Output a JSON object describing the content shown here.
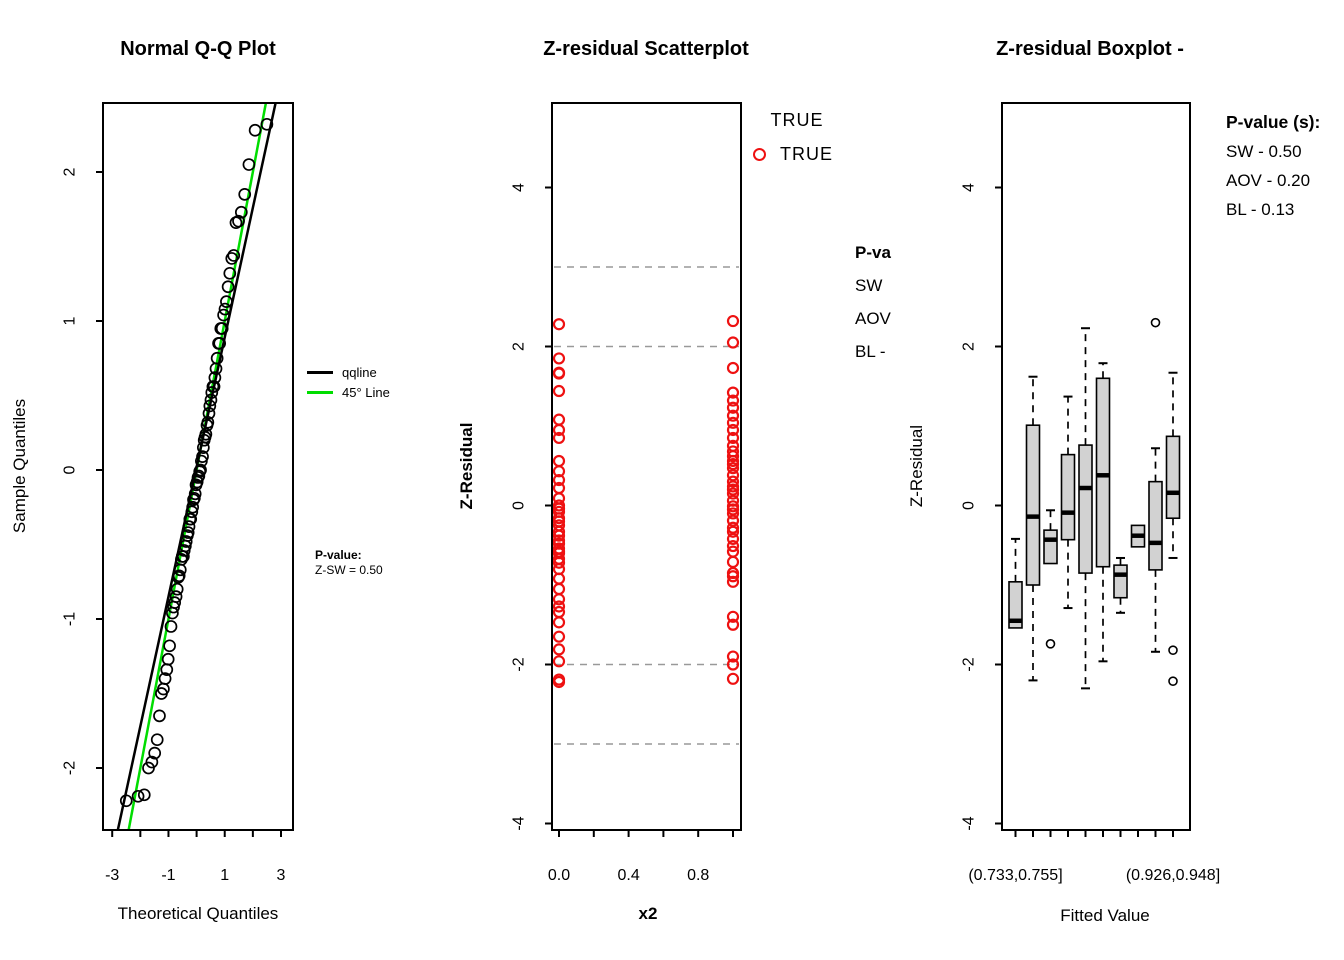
{
  "figure": {
    "background": "#FFFFFF"
  },
  "colors": {
    "black": "#000000",
    "point_red": "#EE1111",
    "line_green": "#00DD00",
    "box_fill": "#D2D2D2",
    "grid_grey": "#999999"
  },
  "chart_data": [
    {
      "id": "qq",
      "type": "scatter",
      "title": "Normal Q-Q Plot",
      "xlabel": "Theoretical Quantiles",
      "ylabel": "Sample Quantiles",
      "xlim": [
        -3.3,
        3.4
      ],
      "ylim": [
        -2.42,
        2.46
      ],
      "grid": false,
      "x_ticks": [
        {
          "v": -3,
          "t": "-3"
        },
        {
          "v": -2,
          "t": ""
        },
        {
          "v": -1,
          "t": "-1"
        },
        {
          "v": 0,
          "t": ""
        },
        {
          "v": 1,
          "t": "1"
        },
        {
          "v": 2,
          "t": ""
        },
        {
          "v": 3,
          "t": "3"
        }
      ],
      "y_ticks": [
        {
          "v": -2,
          "t": "-2"
        },
        {
          "v": -1,
          "t": "-1"
        },
        {
          "v": 0,
          "t": "0"
        },
        {
          "v": 1,
          "t": "1"
        },
        {
          "v": 2,
          "t": "2"
        }
      ],
      "points_x": [
        -2.5,
        -2.08,
        -1.86,
        -1.71,
        -1.59,
        -1.49,
        -1.4,
        -1.32,
        -1.25,
        -1.18,
        -1.12,
        -1.06,
        -1.01,
        -0.96,
        -0.91,
        -0.86,
        -0.82,
        -0.78,
        -0.73,
        -0.69,
        -0.65,
        -0.62,
        -0.58,
        -0.54,
        -0.51,
        -0.47,
        -0.44,
        -0.4,
        -0.37,
        -0.33,
        -0.3,
        -0.27,
        -0.24,
        -0.21,
        -0.17,
        -0.14,
        -0.11,
        -0.08,
        -0.05,
        -0.02,
        0.02,
        0.05,
        0.08,
        0.11,
        0.14,
        0.17,
        0.21,
        0.24,
        0.27,
        0.3,
        0.33,
        0.37,
        0.4,
        0.44,
        0.47,
        0.51,
        0.54,
        0.58,
        0.62,
        0.65,
        0.69,
        0.73,
        0.78,
        0.82,
        0.86,
        0.91,
        0.96,
        1.01,
        1.06,
        1.12,
        1.18,
        1.25,
        1.32,
        1.4,
        1.49,
        1.59,
        1.71,
        1.86,
        2.08,
        2.5
      ],
      "points_y": [
        -2.22,
        -2.19,
        -2.18,
        -2.0,
        -1.96,
        -1.9,
        -1.81,
        -1.65,
        -1.5,
        -1.47,
        -1.4,
        -1.34,
        -1.27,
        -1.18,
        -1.05,
        -0.96,
        -0.92,
        -0.89,
        -0.85,
        -0.8,
        -0.72,
        -0.71,
        -0.67,
        -0.6,
        -0.58,
        -0.58,
        -0.54,
        -0.51,
        -0.48,
        -0.44,
        -0.42,
        -0.38,
        -0.33,
        -0.33,
        -0.28,
        -0.25,
        -0.2,
        -0.19,
        -0.16,
        -0.1,
        -0.08,
        -0.05,
        -0.04,
        -0.01,
        0.0,
        0.06,
        0.09,
        0.15,
        0.2,
        0.22,
        0.24,
        0.3,
        0.32,
        0.38,
        0.43,
        0.47,
        0.52,
        0.56,
        0.56,
        0.62,
        0.68,
        0.75,
        0.85,
        0.85,
        0.95,
        0.95,
        1.04,
        1.08,
        1.13,
        1.23,
        1.32,
        1.42,
        1.44,
        1.66,
        1.67,
        1.73,
        1.85,
        2.05,
        2.28,
        2.32
      ],
      "point_color": "#000000",
      "lines": [
        {
          "name": "45-degree-line",
          "slope": 1.0,
          "intercept": 0.0,
          "color": "#00DD00"
        },
        {
          "name": "qqline",
          "slope": 0.87,
          "intercept": 0.02,
          "color": "#000000"
        }
      ],
      "legend": {
        "items": [
          {
            "label": "qqline",
            "color": "#000000"
          },
          {
            "label": "45° Line",
            "color": "#00DD00"
          }
        ]
      },
      "annotation": {
        "heading": "P-value:",
        "lines": [
          "Z-SW = 0.50"
        ]
      }
    },
    {
      "id": "scatter",
      "type": "scatter",
      "title": "Z-residual Scatterplot",
      "xlabel": "x2",
      "ylabel": "Z-Residual",
      "xlim": [
        -0.04,
        1.05
      ],
      "ylim": [
        -4.08,
        5.06
      ],
      "grid": false,
      "hlines_dashed": [
        3,
        2,
        -2,
        -3
      ],
      "x_ticks": [
        {
          "v": 0.0,
          "t": "0.0"
        },
        {
          "v": 0.2,
          "t": ""
        },
        {
          "v": 0.4,
          "t": "0.4"
        },
        {
          "v": 0.6,
          "t": ""
        },
        {
          "v": 0.8,
          "t": "0.8"
        },
        {
          "v": 1.0,
          "t": ""
        }
      ],
      "y_ticks": [
        {
          "v": -4,
          "t": "-4"
        },
        {
          "v": -2,
          "t": "-2"
        },
        {
          "v": 0,
          "t": "0"
        },
        {
          "v": 2,
          "t": "2"
        },
        {
          "v": 4,
          "t": "4"
        }
      ],
      "series": [
        {
          "name": "x2 = 0",
          "x": 0,
          "values": [
            2.28,
            1.85,
            1.67,
            1.66,
            1.44,
            1.08,
            0.95,
            0.85,
            0.56,
            0.43,
            0.32,
            0.22,
            0.09,
            0.0,
            -0.04,
            -0.08,
            -0.16,
            -0.2,
            -0.25,
            -0.33,
            -0.38,
            -0.44,
            -0.48,
            -0.54,
            -0.58,
            -0.6,
            -0.67,
            -0.72,
            -0.8,
            -0.92,
            -1.05,
            -1.18,
            -1.27,
            -1.34,
            -1.47,
            -1.65,
            -1.81,
            -1.96,
            -2.19,
            -2.22
          ]
        },
        {
          "name": "x2 = 1",
          "x": 1,
          "values": [
            2.32,
            2.05,
            1.73,
            1.42,
            1.32,
            1.23,
            1.13,
            1.04,
            0.95,
            0.85,
            0.75,
            0.68,
            0.62,
            0.56,
            0.52,
            0.47,
            0.38,
            0.3,
            0.24,
            0.2,
            0.15,
            0.06,
            -0.01,
            -0.05,
            -0.1,
            -0.19,
            -0.28,
            -0.33,
            -0.42,
            -0.51,
            -0.58,
            -0.71,
            -0.85,
            -0.89,
            -0.96,
            -1.4,
            -1.5,
            -1.9,
            -2.0,
            -2.18
          ]
        }
      ],
      "point_color": "#EE1111",
      "legend": {
        "title": "TRUE",
        "items": [
          {
            "label": "TRUE",
            "color": "#EE1111"
          }
        ]
      },
      "annotation_clipped": {
        "heading": "P-va",
        "lines": [
          "SW",
          "AOV",
          "BL -"
        ]
      }
    },
    {
      "id": "box",
      "type": "boxplot",
      "title": "Z-residual Boxplot -",
      "xlabel": "Fitted Value",
      "ylabel": "Z-Residual",
      "ylim": [
        -4.08,
        5.06
      ],
      "grid": false,
      "y_ticks": [
        {
          "v": -4,
          "t": "-4"
        },
        {
          "v": -2,
          "t": "-2"
        },
        {
          "v": 0,
          "t": "0"
        },
        {
          "v": 2,
          "t": "2"
        },
        {
          "v": 4,
          "t": "4"
        }
      ],
      "x_tick_labels": [
        {
          "pos": 1,
          "t": "(0.733,0.755]"
        },
        {
          "pos": 10,
          "t": "(0.926,0.948]"
        }
      ],
      "box_fill": "#D2D2D2",
      "groups": [
        {
          "pos": 1,
          "whisker_low": -1.57,
          "q1": -1.54,
          "median": -1.45,
          "q3": -0.96,
          "whisker_high": -0.42,
          "outliers": []
        },
        {
          "pos": 2,
          "whisker_low": -2.2,
          "q1": -1.0,
          "median": -0.14,
          "q3": 1.01,
          "whisker_high": 1.62,
          "outliers": []
        },
        {
          "pos": 3,
          "whisker_low": -0.75,
          "q1": -0.73,
          "median": -0.43,
          "q3": -0.31,
          "whisker_high": -0.06,
          "outliers": [
            -1.74
          ]
        },
        {
          "pos": 4,
          "whisker_low": -1.29,
          "q1": -0.43,
          "median": -0.09,
          "q3": 0.64,
          "whisker_high": 1.37,
          "outliers": []
        },
        {
          "pos": 5,
          "whisker_low": -2.3,
          "q1": -0.85,
          "median": 0.22,
          "q3": 0.76,
          "whisker_high": 2.23,
          "outliers": []
        },
        {
          "pos": 6,
          "whisker_low": -1.96,
          "q1": -0.77,
          "median": 0.38,
          "q3": 1.6,
          "whisker_high": 1.79,
          "outliers": []
        },
        {
          "pos": 7,
          "whisker_low": -1.35,
          "q1": -1.16,
          "median": -0.87,
          "q3": -0.75,
          "whisker_high": -0.66,
          "outliers": []
        },
        {
          "pos": 8,
          "whisker_low": -0.52,
          "q1": -0.52,
          "median": -0.38,
          "q3": -0.25,
          "whisker_high": -0.25,
          "outliers": []
        },
        {
          "pos": 9,
          "whisker_low": -1.84,
          "q1": -0.81,
          "median": -0.47,
          "q3": 0.3,
          "whisker_high": 0.72,
          "outliers": [
            2.3
          ]
        },
        {
          "pos": 10,
          "whisker_low": -0.66,
          "q1": -0.16,
          "median": 0.16,
          "q3": 0.87,
          "whisker_high": 1.67,
          "outliers": [
            -1.82,
            -2.21
          ]
        }
      ],
      "annotation": {
        "heading": "P-value (s):",
        "lines": [
          "SW - 0.50",
          "AOV - 0.20",
          "BL - 0.13"
        ]
      }
    }
  ]
}
